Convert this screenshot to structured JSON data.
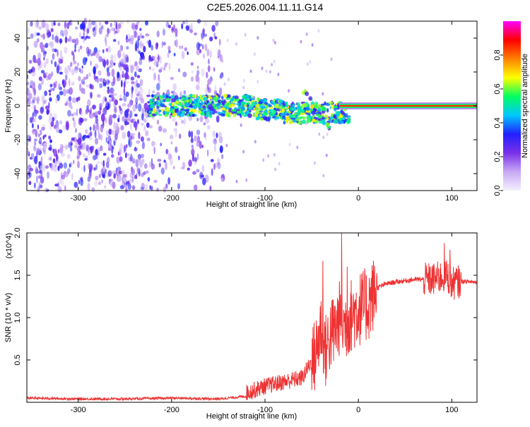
{
  "figure_title": "C2E5.2026.004.11.11.G14",
  "chart_data": [
    {
      "type": "heatmap",
      "title": "C2E5.2026.004.11.11.G14",
      "xlabel": "Height of straight line (km)",
      "ylabel": "Frequency (Hz)",
      "xlim": [
        -355,
        127
      ],
      "ylim": [
        -50,
        50
      ],
      "xticks": [
        -300,
        -200,
        -100,
        0,
        100
      ],
      "yticks": [
        -40,
        -20,
        0,
        20,
        40
      ],
      "xtick_labels": [
        "-300",
        "-200",
        "-100",
        "0",
        "100"
      ],
      "ytick_labels": [
        "-40",
        "-20",
        "0",
        "20",
        "40"
      ],
      "colorbar": {
        "label": "Normalized spectral amplitude",
        "range": [
          0.0,
          1.0
        ],
        "ticks": [
          0.0,
          0.2,
          0.4,
          0.6,
          0.8
        ],
        "tick_labels": [
          "0.0",
          "0.2",
          "0.4",
          "0.6",
          "0.8"
        ],
        "colormap": [
          "#f4f0ff",
          "#c8a8f4",
          "#7a30e8",
          "#2020ff",
          "#00c8ff",
          "#00ff60",
          "#ffff00",
          "#ff8000",
          "#ff0000",
          "#ff00ff"
        ]
      },
      "features": {
        "noise_region_x": [
          -355,
          -145
        ],
        "signal_band_x": [
          -225,
          127
        ],
        "signal_center_freq": 0,
        "strong_line_x": [
          -20,
          127
        ]
      }
    },
    {
      "type": "line",
      "xlabel": "Height of straight line (km)",
      "ylabel": "SNR (10 * v/v)",
      "multiplier": "(x10^4)",
      "xlim": [
        -355,
        127
      ],
      "ylim": [
        0.0,
        2.0
      ],
      "xticks": [
        -300,
        -200,
        -100,
        0,
        100
      ],
      "yticks": [
        0.5,
        1.0,
        1.5,
        2.0
      ],
      "xtick_labels": [
        "-300",
        "-200",
        "-100",
        "0",
        "100"
      ],
      "ytick_labels": [
        "0.5",
        "1.0",
        "1.5",
        "2.0"
      ],
      "series": [
        {
          "name": "SNR",
          "color": "#ee3333",
          "x": [
            -355,
            -300,
            -250,
            -200,
            -150,
            -120,
            -100,
            -80,
            -60,
            -50,
            -45,
            -40,
            -35,
            -30,
            -25,
            -20,
            -15,
            -10,
            0,
            10,
            20,
            30,
            40,
            60,
            80,
            95,
            100,
            110,
            127
          ],
          "y": [
            0.05,
            0.04,
            0.04,
            0.05,
            0.04,
            0.07,
            0.15,
            0.2,
            0.25,
            0.45,
            0.6,
            0.9,
            0.6,
            0.8,
            0.85,
            1.0,
            0.9,
            1.0,
            1.1,
            1.15,
            1.35,
            1.4,
            1.42,
            1.45,
            1.45,
            1.5,
            1.4,
            1.43,
            1.42
          ]
        }
      ],
      "spikes": [
        {
          "x": -38,
          "y": 1.67
        },
        {
          "x": -18,
          "y": 2.0
        },
        {
          "x": -12,
          "y": 1.6
        },
        {
          "x": 92,
          "y": 1.88
        },
        {
          "x": 98,
          "y": 1.8
        }
      ]
    }
  ]
}
